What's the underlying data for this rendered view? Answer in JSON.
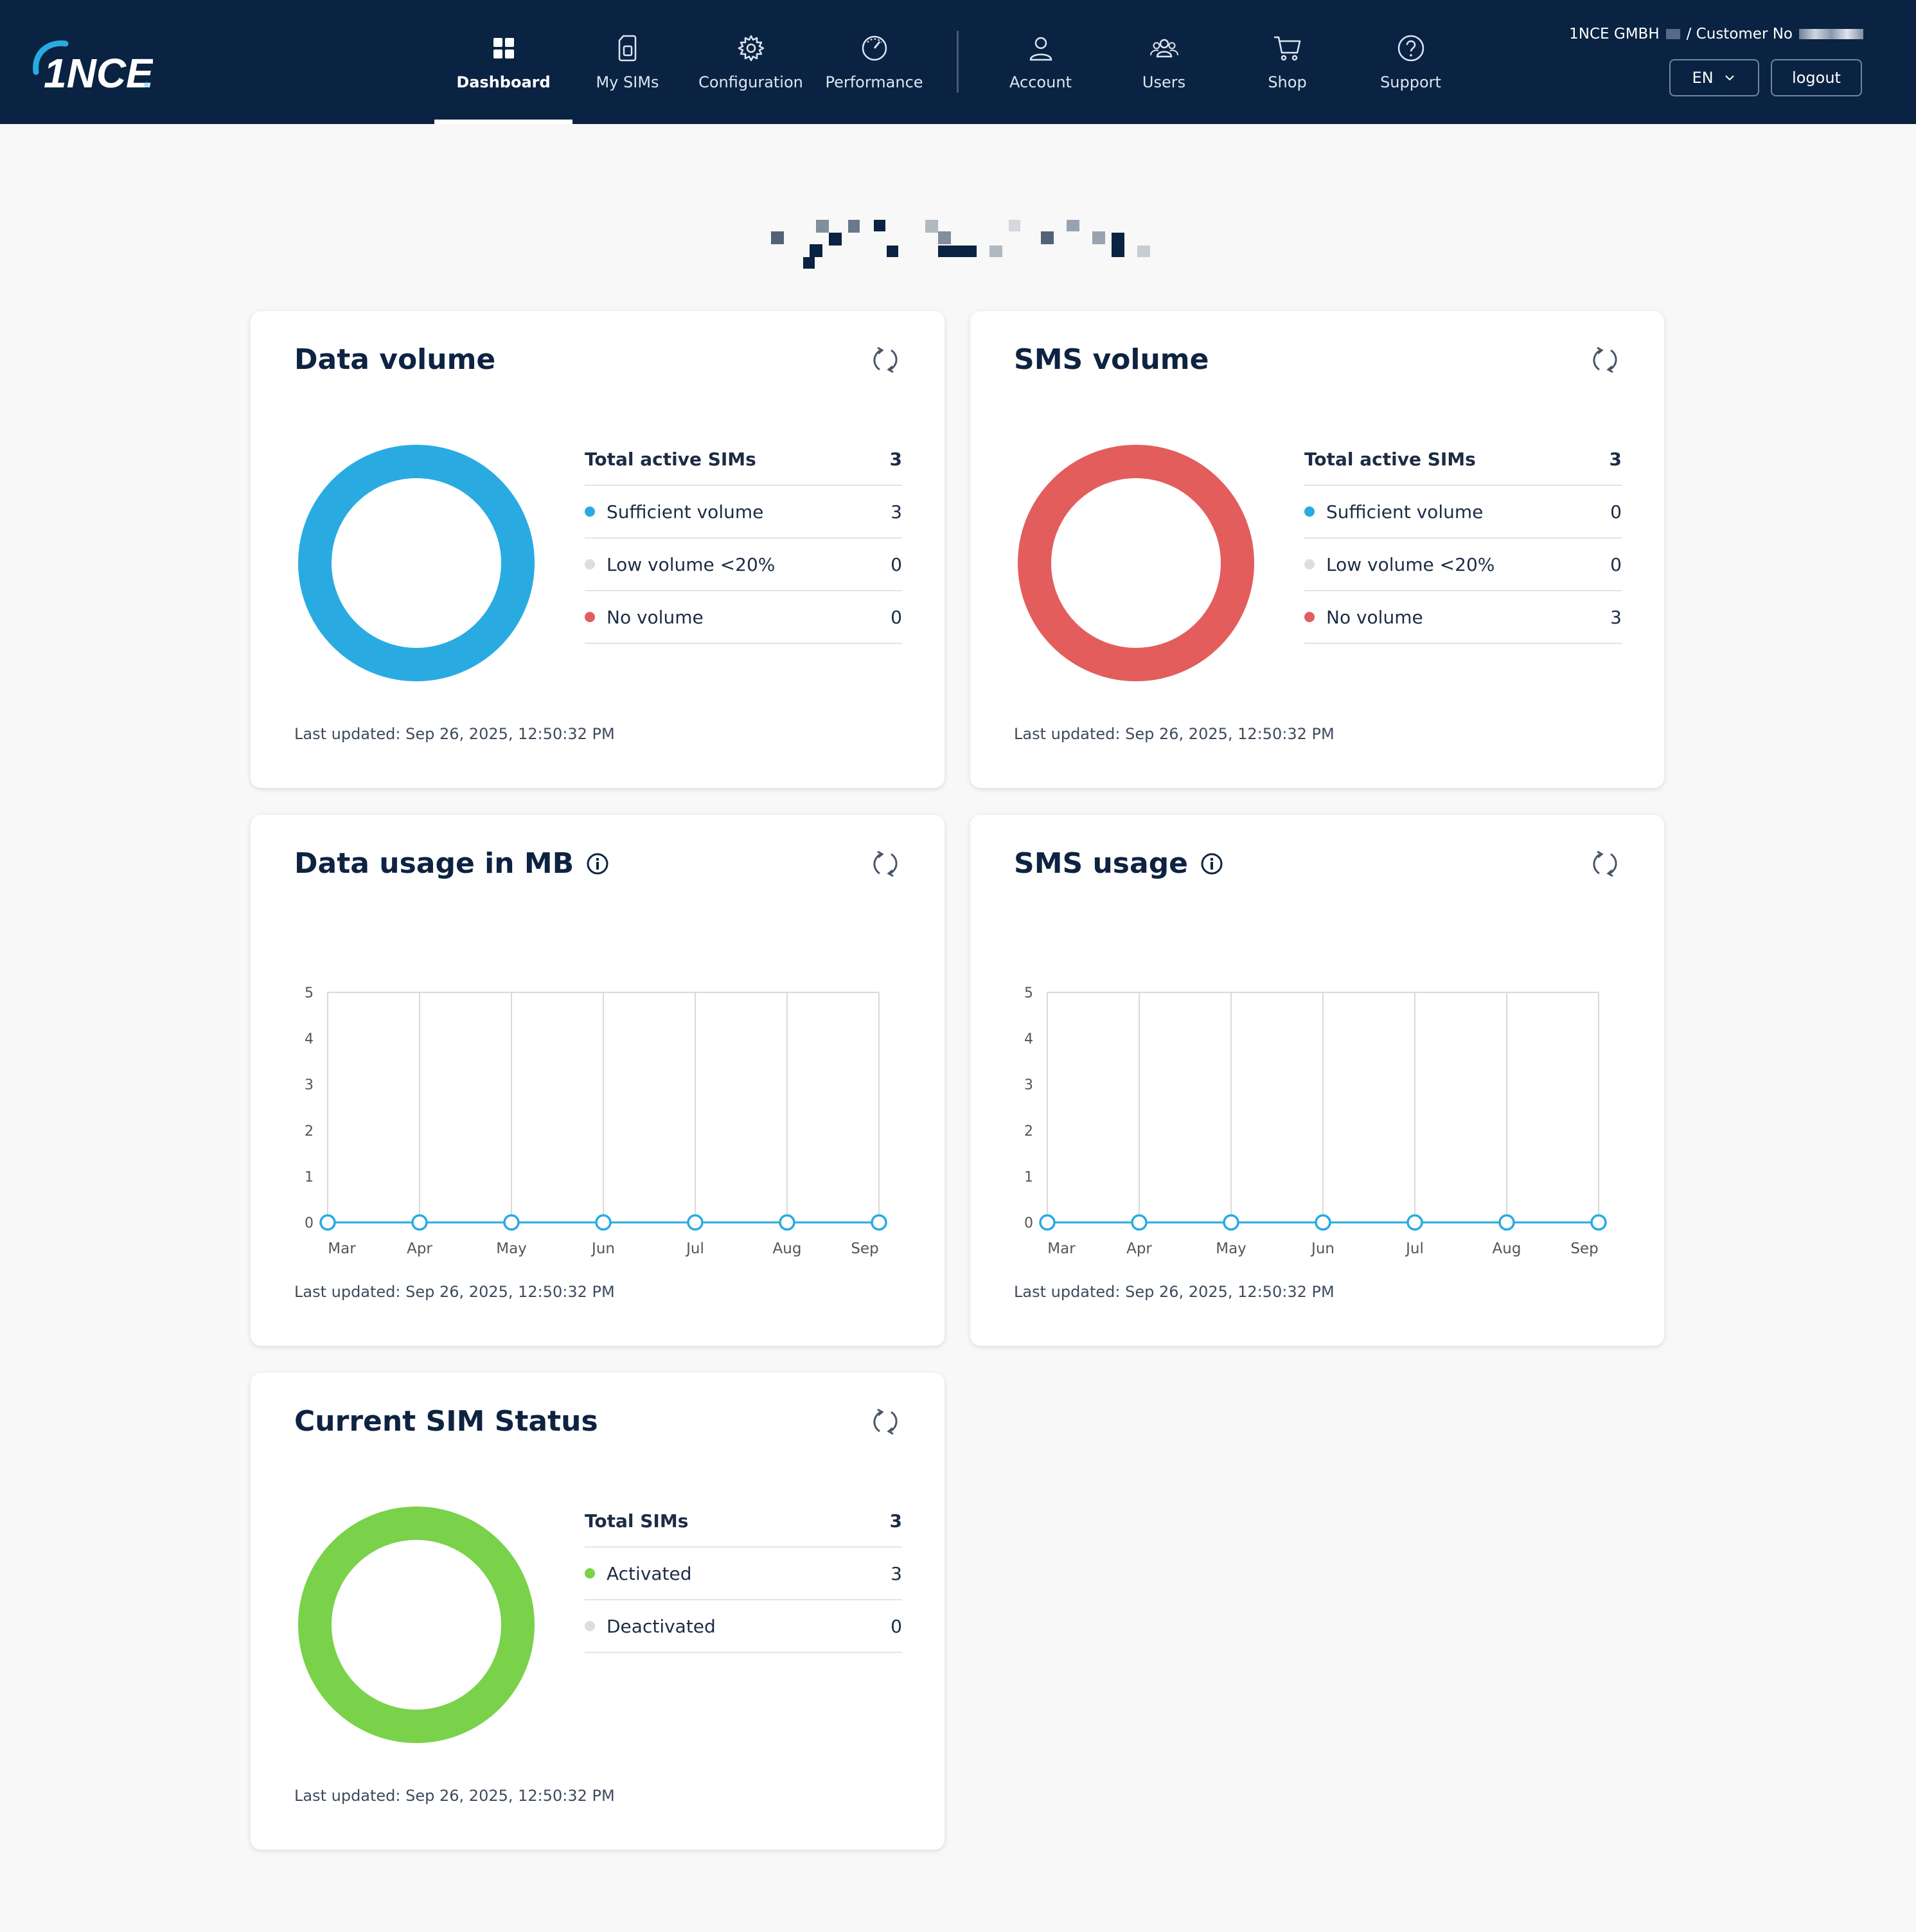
{
  "header": {
    "company": "1NCE GMBH",
    "customer_label": "/ Customer No",
    "language": "EN",
    "logout": "logout",
    "logo_text": "1NCE"
  },
  "nav": [
    {
      "label": "Dashboard",
      "icon": "dashboard-icon",
      "active": true
    },
    {
      "label": "My SIMs",
      "icon": "sim-card-icon",
      "active": false
    },
    {
      "label": "Configuration",
      "icon": "gear-icon",
      "active": false
    },
    {
      "label": "Performance",
      "icon": "speedometer-icon",
      "active": false
    },
    {
      "label": "Account",
      "icon": "user-icon",
      "active": false
    },
    {
      "label": "Users",
      "icon": "users-icon",
      "active": false
    },
    {
      "label": "Shop",
      "icon": "cart-icon",
      "active": false
    },
    {
      "label": "Support",
      "icon": "question-icon",
      "active": false
    }
  ],
  "data_volume": {
    "title": "Data volume",
    "head_label": "Total active SIMs",
    "head_value": "3",
    "rows": [
      {
        "label": "Sufficient volume",
        "value": "3",
        "color": "#29abe2"
      },
      {
        "label": "Low volume <20%",
        "value": "0",
        "color": "#dddddd"
      },
      {
        "label": "No volume",
        "value": "0",
        "color": "#e35d5d"
      }
    ],
    "donut_color": "#29abe2",
    "updated": "Last updated: Sep 26, 2025, 12:50:32 PM"
  },
  "sms_volume": {
    "title": "SMS volume",
    "head_label": "Total active SIMs",
    "head_value": "3",
    "rows": [
      {
        "label": "Sufficient volume",
        "value": "0",
        "color": "#29abe2"
      },
      {
        "label": "Low volume <20%",
        "value": "0",
        "color": "#dddddd"
      },
      {
        "label": "No volume",
        "value": "3",
        "color": "#e35d5d"
      }
    ],
    "donut_color": "#e35d5d",
    "updated": "Last updated: Sep 26, 2025, 12:50:32 PM"
  },
  "data_usage": {
    "title": "Data usage in MB",
    "updated": "Last updated: Sep 26, 2025, 12:50:32 PM"
  },
  "sms_usage": {
    "title": "SMS usage",
    "updated": "Last updated: Sep 26, 2025, 12:50:32 PM"
  },
  "sim_status": {
    "title": "Current SIM Status",
    "head_label": "Total SIMs",
    "head_value": "3",
    "rows": [
      {
        "label": "Activated",
        "value": "3",
        "color": "#7ad14a"
      },
      {
        "label": "Deactivated",
        "value": "0",
        "color": "#dddddd"
      }
    ],
    "donut_color": "#7ad14a",
    "updated": "Last updated: Sep 26, 2025, 12:50:32 PM"
  },
  "chart_data": [
    {
      "type": "line",
      "title": "Data usage in MB",
      "categories": [
        "Mar",
        "Apr",
        "May",
        "Jun",
        "Jul",
        "Aug",
        "Sep"
      ],
      "series": [
        {
          "values": [
            0,
            0,
            0,
            0,
            0,
            0,
            0
          ]
        }
      ],
      "yticks": [
        0,
        1,
        2,
        3,
        4,
        5
      ],
      "ylim": [
        0,
        5
      ],
      "grid": true,
      "color": "#29abe2"
    },
    {
      "type": "line",
      "title": "SMS usage",
      "categories": [
        "Mar",
        "Apr",
        "May",
        "Jun",
        "Jul",
        "Aug",
        "Sep"
      ],
      "series": [
        {
          "values": [
            0,
            0,
            0,
            0,
            0,
            0,
            0
          ]
        }
      ],
      "yticks": [
        0,
        1,
        2,
        3,
        4,
        5
      ],
      "ylim": [
        0,
        5
      ],
      "grid": true,
      "color": "#29abe2"
    }
  ]
}
